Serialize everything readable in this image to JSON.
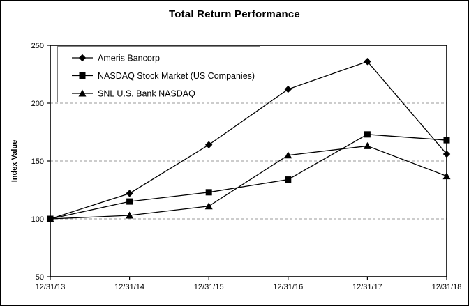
{
  "chart_data": {
    "type": "line",
    "title": "Total Return Performance",
    "xlabel": "",
    "ylabel": "Index Value",
    "categories": [
      "12/31/13",
      "12/31/14",
      "12/31/15",
      "12/31/16",
      "12/31/17",
      "12/31/18"
    ],
    "series": [
      {
        "name": "Ameris Bancorp",
        "marker": "diamond",
        "values": [
          100,
          122,
          164,
          212,
          236,
          156
        ]
      },
      {
        "name": "NASDAQ Stock Market (US Companies)",
        "marker": "square",
        "values": [
          100,
          115,
          123,
          134,
          173,
          168
        ]
      },
      {
        "name": "SNL U.S. Bank NASDAQ",
        "marker": "triangle",
        "values": [
          100,
          103,
          111,
          155,
          163,
          137
        ]
      }
    ],
    "ylim": [
      50,
      250
    ],
    "yticks": [
      50,
      100,
      150,
      200,
      250
    ],
    "grid": "horizontal dashed at 100, 150, 200; solid plot border",
    "legend_position": "top-left inside plot area",
    "line_color": "#000000",
    "grid_color": "#9a9a9a",
    "legend_border_color": "#808080",
    "background_color": "#ffffff"
  }
}
